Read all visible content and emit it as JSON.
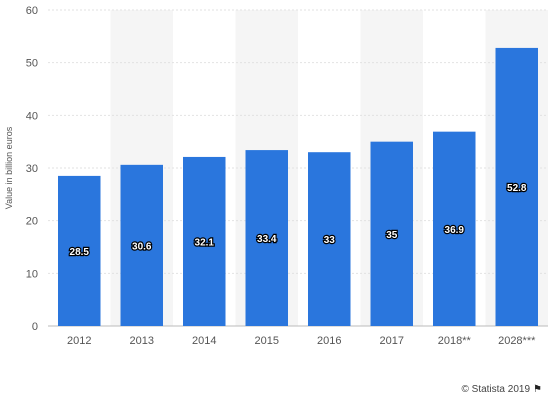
{
  "chart_data": {
    "type": "bar",
    "categories": [
      "2012",
      "2013",
      "2014",
      "2015",
      "2016",
      "2017",
      "2018**",
      "2028***"
    ],
    "values": [
      28.5,
      30.6,
      32.1,
      33.4,
      33,
      35,
      36.9,
      52.8
    ],
    "value_labels": [
      "28.5",
      "30.6",
      "32.1",
      "33.4",
      "33",
      "35",
      "36.9",
      "52.8"
    ],
    "ylabel": "Value in billion euros",
    "ylim": [
      0,
      60
    ],
    "yticks": [
      0,
      10,
      20,
      30,
      40,
      50,
      60
    ],
    "grid": true,
    "bar_color": "#2a76dd",
    "band_color": "#f5f5f5"
  },
  "credit": {
    "text": "© Statista 2019",
    "icon": "flag-icon"
  }
}
